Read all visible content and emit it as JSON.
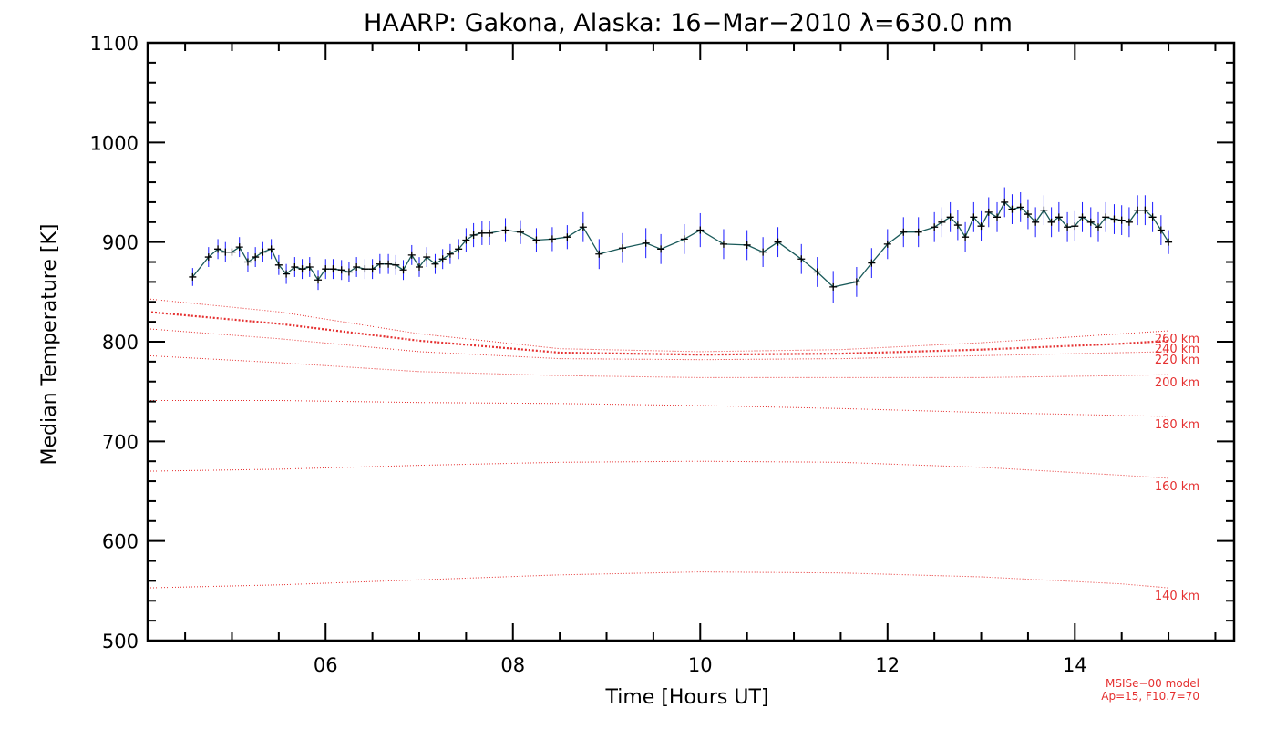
{
  "chart_data": {
    "type": "line",
    "title": "HAARP: Gakona,  Alaska: 16−Mar−2010 λ=630.0 nm",
    "xlabel": "Time [Hours UT]",
    "ylabel": "Median Temperature [K]",
    "xlim": [
      4.1,
      15.7
    ],
    "ylim": [
      500,
      1100
    ],
    "x_ticks": [
      6,
      8,
      10,
      12,
      14
    ],
    "x_tick_labels": [
      "06",
      "08",
      "10",
      "12",
      "14"
    ],
    "y_ticks": [
      500,
      600,
      700,
      800,
      900,
      1000,
      1100
    ],
    "y_tick_labels": [
      "500",
      "600",
      "700",
      "800",
      "900",
      "1000",
      "1100"
    ],
    "grid": false,
    "measured": {
      "line_color": "#1a5a5a",
      "marker_color": "#000000",
      "errorbar_color": "#1a1aff",
      "x": [
        4.58,
        4.75,
        4.85,
        4.93,
        5.0,
        5.08,
        5.17,
        5.25,
        5.33,
        5.42,
        5.5,
        5.58,
        5.67,
        5.75,
        5.83,
        5.92,
        6.0,
        6.08,
        6.17,
        6.25,
        6.33,
        6.42,
        6.5,
        6.58,
        6.67,
        6.75,
        6.83,
        6.92,
        7.0,
        7.08,
        7.17,
        7.25,
        7.33,
        7.42,
        7.5,
        7.58,
        7.67,
        7.75,
        7.92,
        8.08,
        8.25,
        8.42,
        8.58,
        8.75,
        8.92,
        9.17,
        9.42,
        9.58,
        9.83,
        10.0,
        10.25,
        10.5,
        10.67,
        10.83,
        11.08,
        11.25,
        11.42,
        11.67,
        11.83,
        12.0,
        12.17,
        12.33,
        12.5,
        12.58,
        12.67,
        12.75,
        12.83,
        12.92,
        13.0,
        13.08,
        13.17,
        13.25,
        13.33,
        13.42,
        13.5,
        13.58,
        13.67,
        13.75,
        13.83,
        13.92,
        14.0,
        14.08,
        14.17,
        14.25,
        14.33,
        14.42,
        14.5,
        14.58,
        14.67,
        14.75,
        14.83,
        14.92,
        15.0
      ],
      "values": [
        865,
        885,
        893,
        890,
        890,
        895,
        880,
        885,
        890,
        893,
        877,
        868,
        875,
        873,
        875,
        862,
        873,
        873,
        872,
        870,
        875,
        873,
        873,
        878,
        878,
        877,
        872,
        887,
        875,
        885,
        878,
        883,
        888,
        893,
        902,
        907,
        909,
        909,
        912,
        910,
        902,
        903,
        905,
        915,
        888,
        894,
        899,
        893,
        903,
        912,
        898,
        897,
        890,
        900,
        883,
        870,
        855,
        860,
        879,
        898,
        910,
        910,
        915,
        920,
        925,
        917,
        905,
        925,
        916,
        930,
        925,
        940,
        933,
        935,
        928,
        920,
        932,
        920,
        925,
        915,
        916,
        925,
        920,
        915,
        925,
        923,
        922,
        920,
        932,
        932,
        925,
        912,
        900
      ],
      "errors": [
        9,
        10,
        10,
        10,
        10,
        10,
        10,
        10,
        10,
        10,
        10,
        10,
        10,
        10,
        10,
        10,
        10,
        10,
        10,
        10,
        10,
        10,
        10,
        10,
        10,
        10,
        10,
        10,
        10,
        10,
        10,
        10,
        10,
        10,
        12,
        12,
        12,
        12,
        12,
        12,
        12,
        12,
        12,
        15,
        15,
        15,
        15,
        15,
        15,
        17,
        15,
        15,
        15,
        15,
        15,
        15,
        16,
        15,
        15,
        15,
        15,
        15,
        15,
        15,
        15,
        15,
        15,
        15,
        15,
        15,
        15,
        15,
        15,
        15,
        15,
        15,
        15,
        15,
        15,
        15,
        15,
        15,
        15,
        15,
        15,
        15,
        15,
        15,
        15,
        15,
        15,
        15,
        12
      ]
    },
    "model_series": [
      {
        "name": "260 km",
        "style": "thin",
        "x": [
          4.1,
          5.5,
          7.0,
          8.5,
          10.0,
          11.5,
          13.0,
          14.5,
          15.0
        ],
        "values": [
          843,
          830,
          808,
          793,
          790,
          792,
          799,
          808,
          811
        ]
      },
      {
        "name": "240 km",
        "style": "thick",
        "x": [
          4.1,
          5.5,
          7.0,
          8.5,
          10.0,
          11.5,
          13.0,
          14.5,
          15.0
        ],
        "values": [
          830,
          818,
          801,
          789,
          787,
          788,
          792,
          798,
          801
        ]
      },
      {
        "name": "220 km",
        "style": "thin",
        "x": [
          4.1,
          5.5,
          7.0,
          8.5,
          10.0,
          11.5,
          13.0,
          14.5,
          15.0
        ],
        "values": [
          813,
          803,
          790,
          783,
          782,
          783,
          786,
          789,
          790
        ]
      },
      {
        "name": "200 km",
        "style": "thin",
        "x": [
          4.1,
          5.5,
          7.0,
          8.5,
          10.0,
          11.5,
          13.0,
          14.5,
          15.0
        ],
        "values": [
          786,
          779,
          770,
          766,
          764,
          764,
          764,
          766,
          767
        ]
      },
      {
        "name": "180 km",
        "style": "thin",
        "x": [
          4.1,
          5.5,
          7.0,
          8.5,
          10.0,
          11.5,
          13.0,
          14.5,
          15.0
        ],
        "values": [
          741,
          741,
          739,
          738,
          736,
          733,
          729,
          726,
          725
        ]
      },
      {
        "name": "160 km",
        "style": "thin",
        "x": [
          4.1,
          5.5,
          7.0,
          8.5,
          10.0,
          11.5,
          13.0,
          14.5,
          15.0
        ],
        "values": [
          670,
          672,
          676,
          679,
          680,
          679,
          674,
          666,
          663
        ]
      },
      {
        "name": "140 km",
        "style": "thin",
        "x": [
          4.1,
          5.5,
          7.0,
          8.5,
          10.0,
          11.5,
          13.0,
          14.5,
          15.0
        ],
        "values": [
          553,
          556,
          561,
          566,
          569,
          568,
          564,
          557,
          553
        ]
      }
    ],
    "model_color": "#e53030",
    "footnote": [
      "MSISe−00 model",
      "Ap=15, F10.7=70"
    ]
  }
}
